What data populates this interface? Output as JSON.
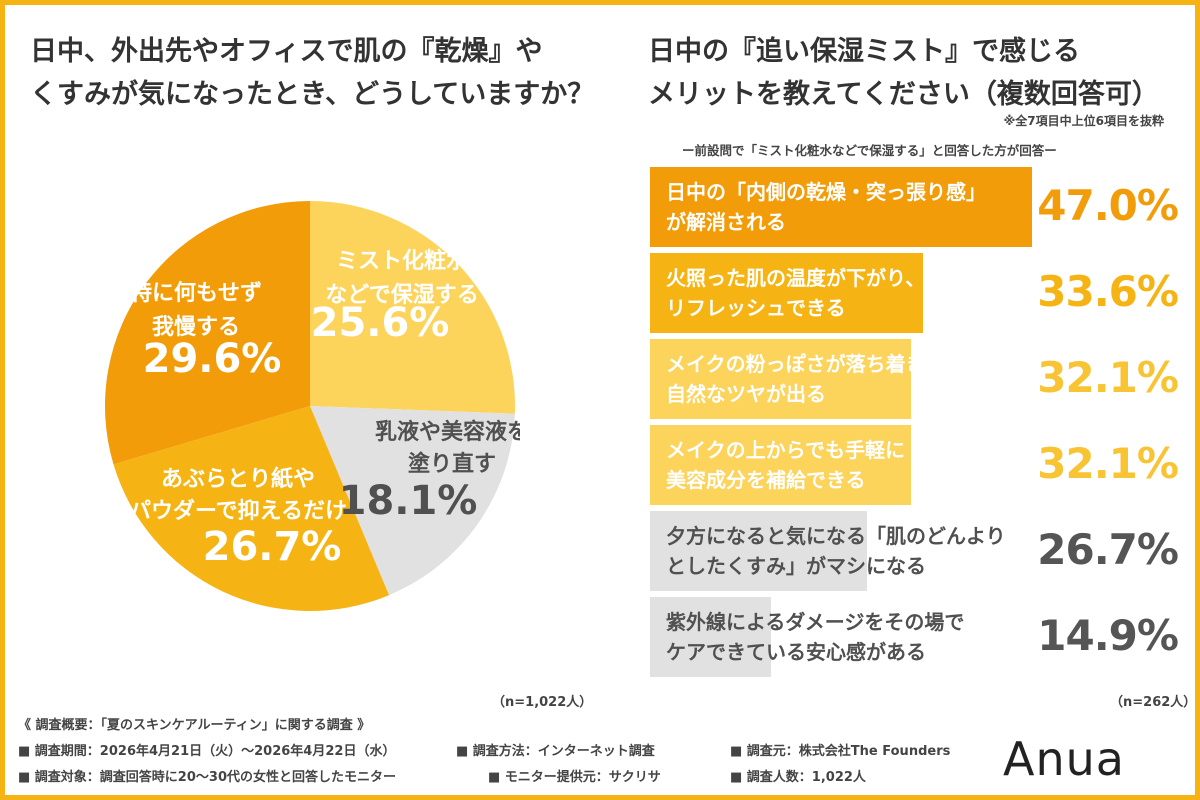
{
  "left_title": {
    "line1": "日中、外出先やオフィスで肌の『乾燥』や",
    "line2": "くすみが気になったとき、どうしていますか？"
  },
  "right_title": {
    "line1": "日中の『追い保湿ミスト』で感じる",
    "line2": "メリットを教えてください（複数回答可）"
  },
  "note_top": "※全7項目中上位6項目を抜粋",
  "note_sub": "ー前設問で「ミスト化粧水などで保湿する」と回答した方が回答ー",
  "chart_data": [
    {
      "type": "pie",
      "slices": [
        {
          "label_lines": [
            "ミスト化粧水",
            "などで保湿する"
          ],
          "value": 25.6,
          "value_text": "25.6%",
          "color": "#fcd35b",
          "text_color": "#ffffff"
        },
        {
          "label_lines": [
            "乳液や美容液を",
            "塗り直す"
          ],
          "value": 18.1,
          "value_text": "18.1%",
          "color": "#e1e1e1",
          "text_color": "#505050"
        },
        {
          "label_lines": [
            "あぶらとり紙や",
            "パウダーで抑えるだけ"
          ],
          "value": 26.7,
          "value_text": "26.7%",
          "color": "#f6b414",
          "text_color": "#ffffff"
        },
        {
          "label_lines": [
            "特に何もせず",
            "我慢する"
          ],
          "value": 29.6,
          "value_text": "29.6%",
          "color": "#f29c0a",
          "text_color": "#ffffff"
        }
      ],
      "n_label": "（n=1,022人）"
    },
    {
      "type": "bar",
      "max": 50,
      "bars": [
        {
          "label_lines": [
            "日中の「内側の乾燥・突っ張り感」",
            "が解消される"
          ],
          "value": 47.0,
          "value_text": "47.0%",
          "color": "#f29c0a",
          "text_color": "#ffffff",
          "value_color": "#f29c0a"
        },
        {
          "label_lines": [
            "火照った肌の温度が下がり、",
            "リフレッシュできる"
          ],
          "value": 33.6,
          "value_text": "33.6%",
          "color": "#f6b414",
          "text_color": "#ffffff",
          "value_color": "#f6b414"
        },
        {
          "label_lines": [
            "メイクの粉っぽさが落ち着き、",
            "自然なツヤが出る"
          ],
          "value": 32.1,
          "value_text": "32.1%",
          "color": "#fcd35b",
          "text_color": "#ffffff",
          "value_color": "#f8c433"
        },
        {
          "label_lines": [
            "メイクの上からでも手軽に",
            "美容成分を補給できる"
          ],
          "value": 32.1,
          "value_text": "32.1%",
          "color": "#fcd35b",
          "text_color": "#ffffff",
          "value_color": "#f8c433"
        },
        {
          "label_lines": [
            "夕方になると気になる「肌のどんより",
            "としたくすみ」がマシになる"
          ],
          "value": 26.7,
          "value_text": "26.7%",
          "color": "#e1e1e1",
          "text_color": "#505050",
          "value_color": "#555555"
        },
        {
          "label_lines": [
            "紫外線によるダメージをその場で",
            "ケアできている安心感がある"
          ],
          "value": 14.9,
          "value_text": "14.9%",
          "color": "#e1e1e1",
          "text_color": "#505050",
          "value_color": "#555555"
        }
      ],
      "n_label": "（n=262人）"
    }
  ],
  "footer": {
    "title": "《 調査概要：「夏のスキンケアルーティン」に関する調査 》",
    "period": "■ 調査期間：2026年4月21日（火）〜2026年4月22日（水）",
    "method": "■ 調査方法：インターネット調査",
    "source": "■ 調査元：株式会社The Founders",
    "target": "■ 調査対象：調査回答時に20〜30代の女性と回答したモニター",
    "provider": "■ モニター提供元：サクリサ",
    "count": "■ 調査人数：1,022人"
  },
  "brand": "Anua"
}
